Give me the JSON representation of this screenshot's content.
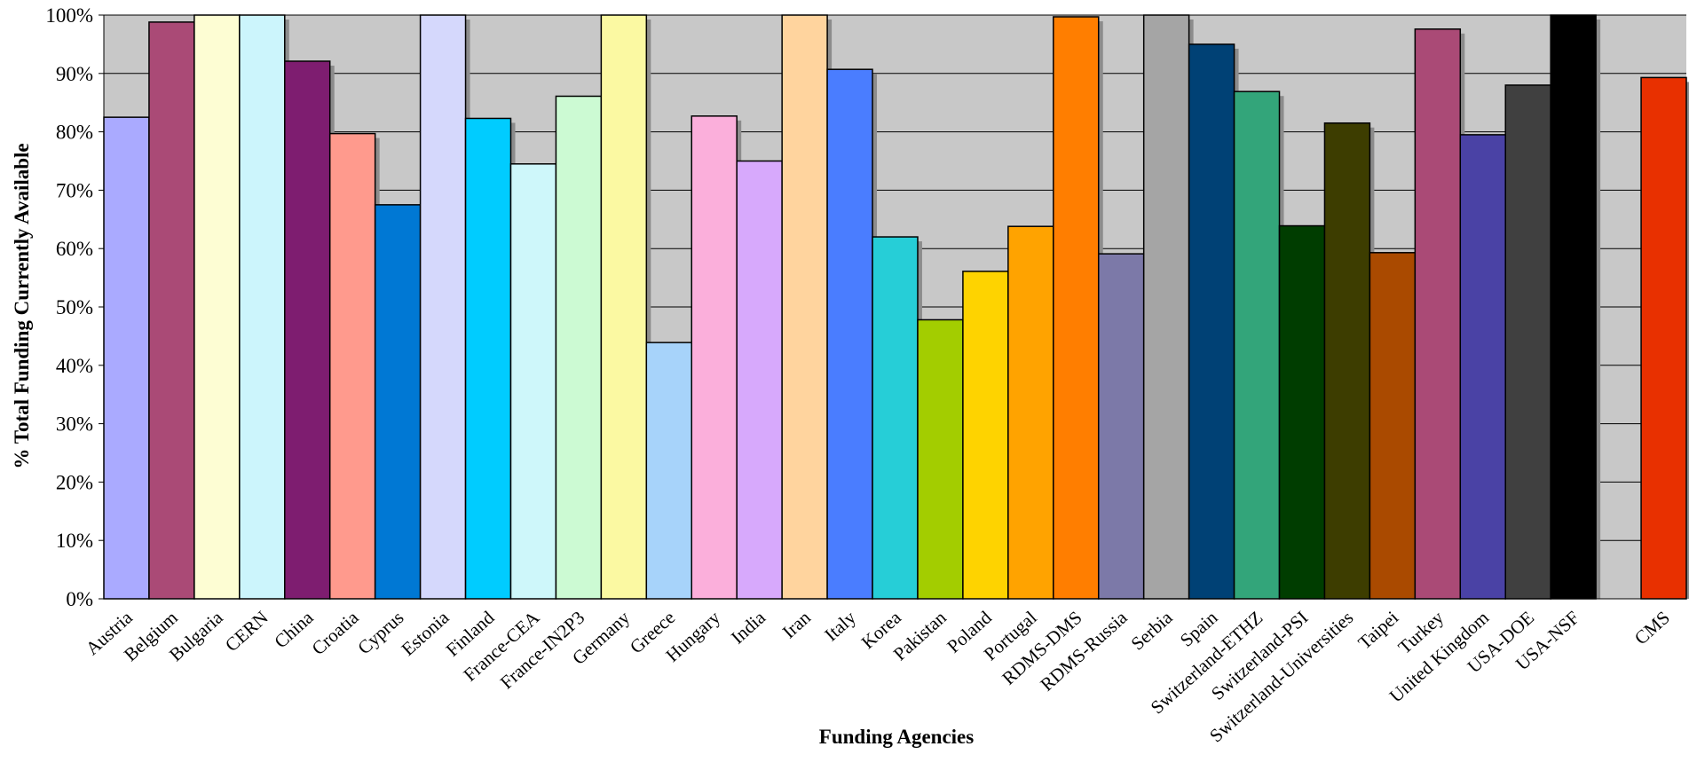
{
  "chart_data": {
    "type": "bar",
    "title": "",
    "xlabel": "Funding Agencies",
    "ylabel": "% Total Funding Currently Available",
    "ylim": [
      0,
      100
    ],
    "yticks": [
      "0%",
      "10%",
      "20%",
      "30%",
      "40%",
      "50%",
      "60%",
      "70%",
      "80%",
      "90%",
      "100%"
    ],
    "grid": true,
    "categories": [
      "Austria",
      "Belgium",
      "Bulgaria",
      "CERN",
      "China",
      "Croatia",
      "Cyprus",
      "Estonia",
      "Finland",
      "France-CEA",
      "France-IN2P3",
      "Germany",
      "Greece",
      "Hungary",
      "India",
      "Iran",
      "Italy",
      "Korea",
      "Pakistan",
      "Poland",
      "Portugal",
      "RDMS-DMS",
      "RDMS-Russia",
      "Serbia",
      "Spain",
      "Switzerland-ETHZ",
      "Switzerland-PSI",
      "Switzerland-Universities",
      "Taipei",
      "Turkey",
      "United Kingdom",
      "USA-DOE",
      "USA-NSF",
      "",
      "CMS"
    ],
    "values": [
      82.5,
      98.8,
      100,
      100,
      92.1,
      79.7,
      67.5,
      100,
      82.3,
      74.5,
      86.1,
      100,
      43.9,
      82.7,
      75.0,
      100,
      90.7,
      62.0,
      47.8,
      56.1,
      63.8,
      99.7,
      59.1,
      100,
      95.0,
      86.9,
      63.9,
      81.5,
      59.3,
      97.6,
      79.5,
      88.0,
      100,
      null,
      89.3
    ],
    "colors": [
      "#aaaaff",
      "#aa4a76",
      "#fdfdd3",
      "#ccf5fc",
      "#7e1d70",
      "#ff9a8d",
      "#0078d4",
      "#d5d8fc",
      "#00ccff",
      "#cef7fa",
      "#ccfad3",
      "#fbf9a2",
      "#a7d3fa",
      "#fbafdb",
      "#d7a9fc",
      "#ffd49e",
      "#4a7dff",
      "#26ced7",
      "#a3cd00",
      "#fed300",
      "#ffa300",
      "#ff7e00",
      "#7c79a8",
      "#a5a5a5",
      "#004175",
      "#33a57a",
      "#003d00",
      "#3d3d00",
      "#aa4a00",
      "#aa4a76",
      "#4a42a5",
      "#404040",
      "#000000",
      "",
      "#e83000"
    ]
  }
}
